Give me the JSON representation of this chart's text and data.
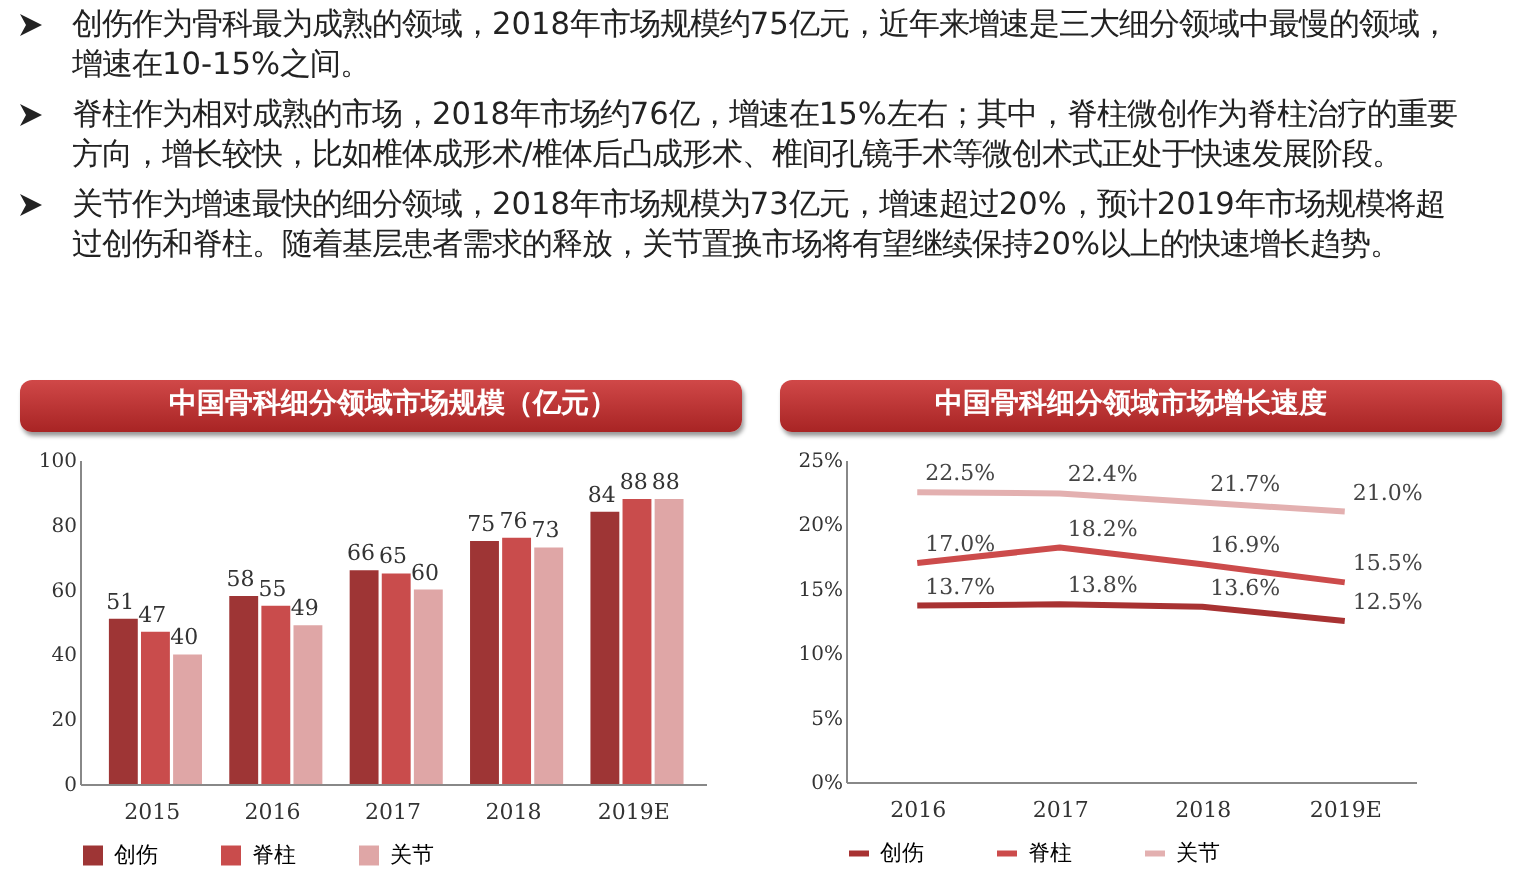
{
  "chart_data": [
    {
      "type": "other",
      "annotations": [
        "创伤作为骨科最为成熟的领域，2018年市场规模约75亿元，近年来增速是三大细分领域中最慢的领域，增速在10-15%之间。",
        "脊柱作为相对成熟的市场，2018年市场约76亿，增速在15%左右；其中，脊柱微创作为脊柱治疗的重要方向，增长较快，比如椎体成形术/椎体后凸成形术、椎间孔镜手术等微创术式正处于快速发展阶段。",
        "关节作为增速最快的细分领域，2018年市场规模为73亿元，增速超过20%，预计2019年市场规模将超过创伤和脊柱。随着基层患者需求的释放，关节置换市场将有望继续保持20%以上的快速增长趋势。"
      ]
    },
    {
      "type": "bar",
      "title": "中国骨科细分领域市场规模（亿元）",
      "categories": [
        "2015",
        "2016",
        "2017",
        "2018",
        "2019E"
      ],
      "series": [
        {
          "name": "创伤",
          "color": "#9e3535",
          "values": [
            51,
            58,
            66,
            75,
            84
          ]
        },
        {
          "name": "脊柱",
          "color": "#c94c4c",
          "values": [
            47,
            55,
            65,
            76,
            88
          ]
        },
        {
          "name": "关节",
          "color": "#dfa6a6",
          "values": [
            40,
            49,
            60,
            73,
            88
          ]
        }
      ],
      "ylim": [
        0,
        100
      ],
      "yticks": [
        0,
        20,
        40,
        60,
        80,
        100
      ],
      "data_labels": true,
      "legend": "bottom"
    },
    {
      "type": "line",
      "title": "中国骨科细分领域市场增长速度",
      "categories": [
        "2016",
        "2017",
        "2018",
        "2019E"
      ],
      "series": [
        {
          "name": "创伤",
          "color": "#a83232",
          "values": [
            13.7,
            13.8,
            13.6,
            12.5
          ],
          "value_labels": [
            "13.7%",
            "13.8%",
            "13.6%",
            "12.5%"
          ]
        },
        {
          "name": "脊柱",
          "color": "#cc4b4b",
          "values": [
            17.0,
            18.2,
            16.9,
            15.5
          ],
          "value_labels": [
            "17.0%",
            "18.2%",
            "16.9%",
            "15.5%"
          ]
        },
        {
          "name": "关节",
          "color": "#e3b0b0",
          "values": [
            22.5,
            22.4,
            21.7,
            21.0
          ],
          "value_labels": [
            "22.5%",
            "22.4%",
            "21.7%",
            "21.0%"
          ]
        }
      ],
      "ylim": [
        0,
        25
      ],
      "yticks": [
        {
          "value": 0,
          "label": "0%"
        },
        {
          "value": 5,
          "label": "5%"
        },
        {
          "value": 10,
          "label": "10%"
        },
        {
          "value": 15,
          "label": "15%"
        },
        {
          "value": 20,
          "label": "20%"
        },
        {
          "value": 25,
          "label": "25%"
        }
      ],
      "legend": "bottom"
    }
  ]
}
